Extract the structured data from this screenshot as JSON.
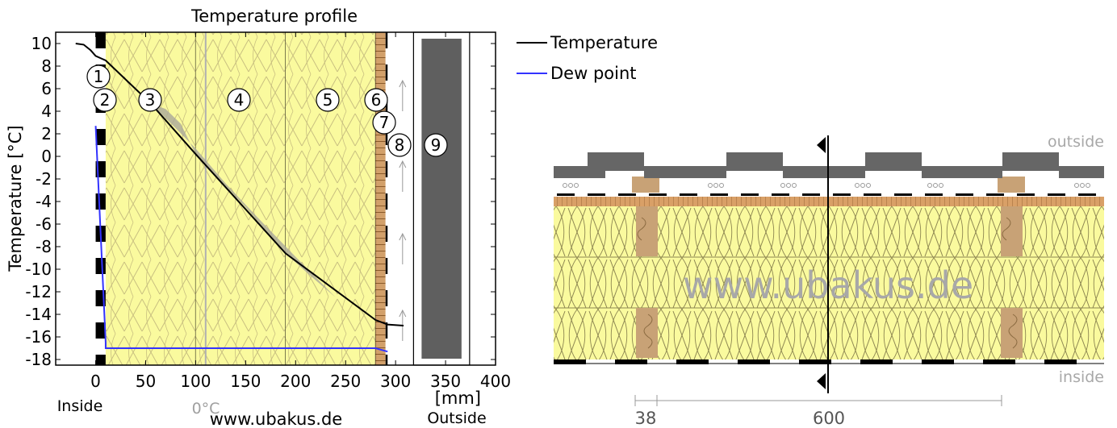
{
  "chart_data": {
    "type": "line",
    "title": "Temperature profile",
    "xlabel": "[mm]",
    "ylabel": "Temperature  [°C]",
    "xlim": [
      -40,
      400
    ],
    "ylim": [
      -18.5,
      11
    ],
    "x_ticks": [
      "0",
      "50",
      "100",
      "150",
      "200",
      "250",
      "300",
      "350",
      "400"
    ],
    "y_ticks": [
      "10",
      "8",
      "6",
      "4",
      "2",
      "0",
      "-2",
      "-4",
      "-6",
      "-8",
      "-10",
      "-12",
      "-14",
      "-16",
      "-18"
    ],
    "inside_label": "Inside",
    "outside_label": "Outside",
    "zero_label": "0°C",
    "watermark": "www.ubakus.de",
    "legend": [
      {
        "name": "Temperature",
        "color": "#000000"
      },
      {
        "name": "Dew point",
        "color": "#3333ff"
      }
    ],
    "layers": [
      {
        "id": "1",
        "from": 0,
        "to": 10,
        "material": "vapour-membrane"
      },
      {
        "id": "2",
        "from": 0,
        "to": 10,
        "material": "vapour-membrane"
      },
      {
        "id": "3",
        "from": 10,
        "to": 100,
        "material": "mineral-wool"
      },
      {
        "id": "4",
        "from": 100,
        "to": 190,
        "material": "mineral-wool"
      },
      {
        "id": "5",
        "from": 190,
        "to": 280,
        "material": "mineral-wool"
      },
      {
        "id": "6",
        "from": 280,
        "to": 290,
        "material": "wood-fibre-board"
      },
      {
        "id": "7",
        "from": 290,
        "to": 292,
        "material": "membrane"
      },
      {
        "id": "8",
        "from": 292,
        "to": 322,
        "material": "ventilated-air-gap"
      },
      {
        "id": "9",
        "from": 322,
        "to": 370,
        "material": "roof-tiles"
      }
    ],
    "series": [
      {
        "name": "Temperature",
        "color": "#000000",
        "x": [
          -20,
          -12,
          -5,
          0,
          10,
          55,
          100,
          190,
          280,
          292,
          308
        ],
        "y": [
          10,
          9.9,
          9.4,
          8.9,
          8.5,
          4.7,
          0.2,
          -8.6,
          -14.5,
          -14.9,
          -15
        ]
      },
      {
        "name": "Dew point",
        "color": "#3333ff",
        "x": [
          0,
          10,
          10,
          280,
          292
        ],
        "y": [
          2.7,
          -16.5,
          -17,
          -17,
          -17.3
        ]
      }
    ]
  },
  "diagram": {
    "outside_label": "outside",
    "inside_label": "inside",
    "watermark": "www.ubakus.de",
    "dim_small": "38",
    "dim_large": "600"
  }
}
